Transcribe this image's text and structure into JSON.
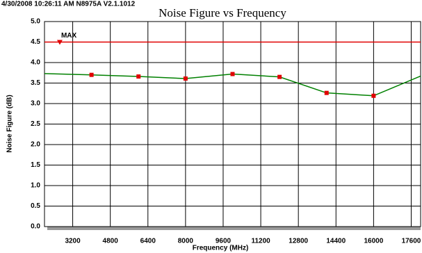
{
  "header": {
    "stamp": "4/30/2008 10:26:11 AM N8975A V2.1.1012"
  },
  "chart_data": {
    "type": "line",
    "title": "Noise Figure vs Frequency",
    "x_label": "Frequency (MHz)",
    "y_label": "Noise Figure (dB)",
    "x": [
      2000,
      4000,
      6000,
      8000,
      10000,
      12000,
      14000,
      16000,
      18000
    ],
    "values": [
      3.73,
      3.7,
      3.66,
      3.61,
      3.72,
      3.65,
      3.26,
      3.19,
      3.67
    ],
    "color": "#008000",
    "marker_color": "#e00000",
    "limit": {
      "value": 4.5,
      "color": "#e00000"
    },
    "annotations": [
      {
        "text": "MAX",
        "x": 2650,
        "y": 4.5
      }
    ],
    "xlim": [
      2000,
      18000
    ],
    "xticks": [
      3200,
      4800,
      6400,
      8000,
      9600,
      11200,
      12800,
      14400,
      16000,
      17600
    ],
    "ylim": [
      0,
      5
    ],
    "yticks": [
      {
        "value": 0,
        "label": "0.0"
      },
      0.5,
      {
        "value": 1,
        "label": "1.0"
      },
      1.5,
      {
        "value": 2,
        "label": "2.0"
      },
      2.5,
      {
        "value": 3,
        "label": "3.0"
      },
      3.5,
      {
        "value": 4,
        "label": "4.0"
      },
      4.5,
      {
        "value": 5,
        "label": "5.0"
      }
    ],
    "grid": true
  }
}
